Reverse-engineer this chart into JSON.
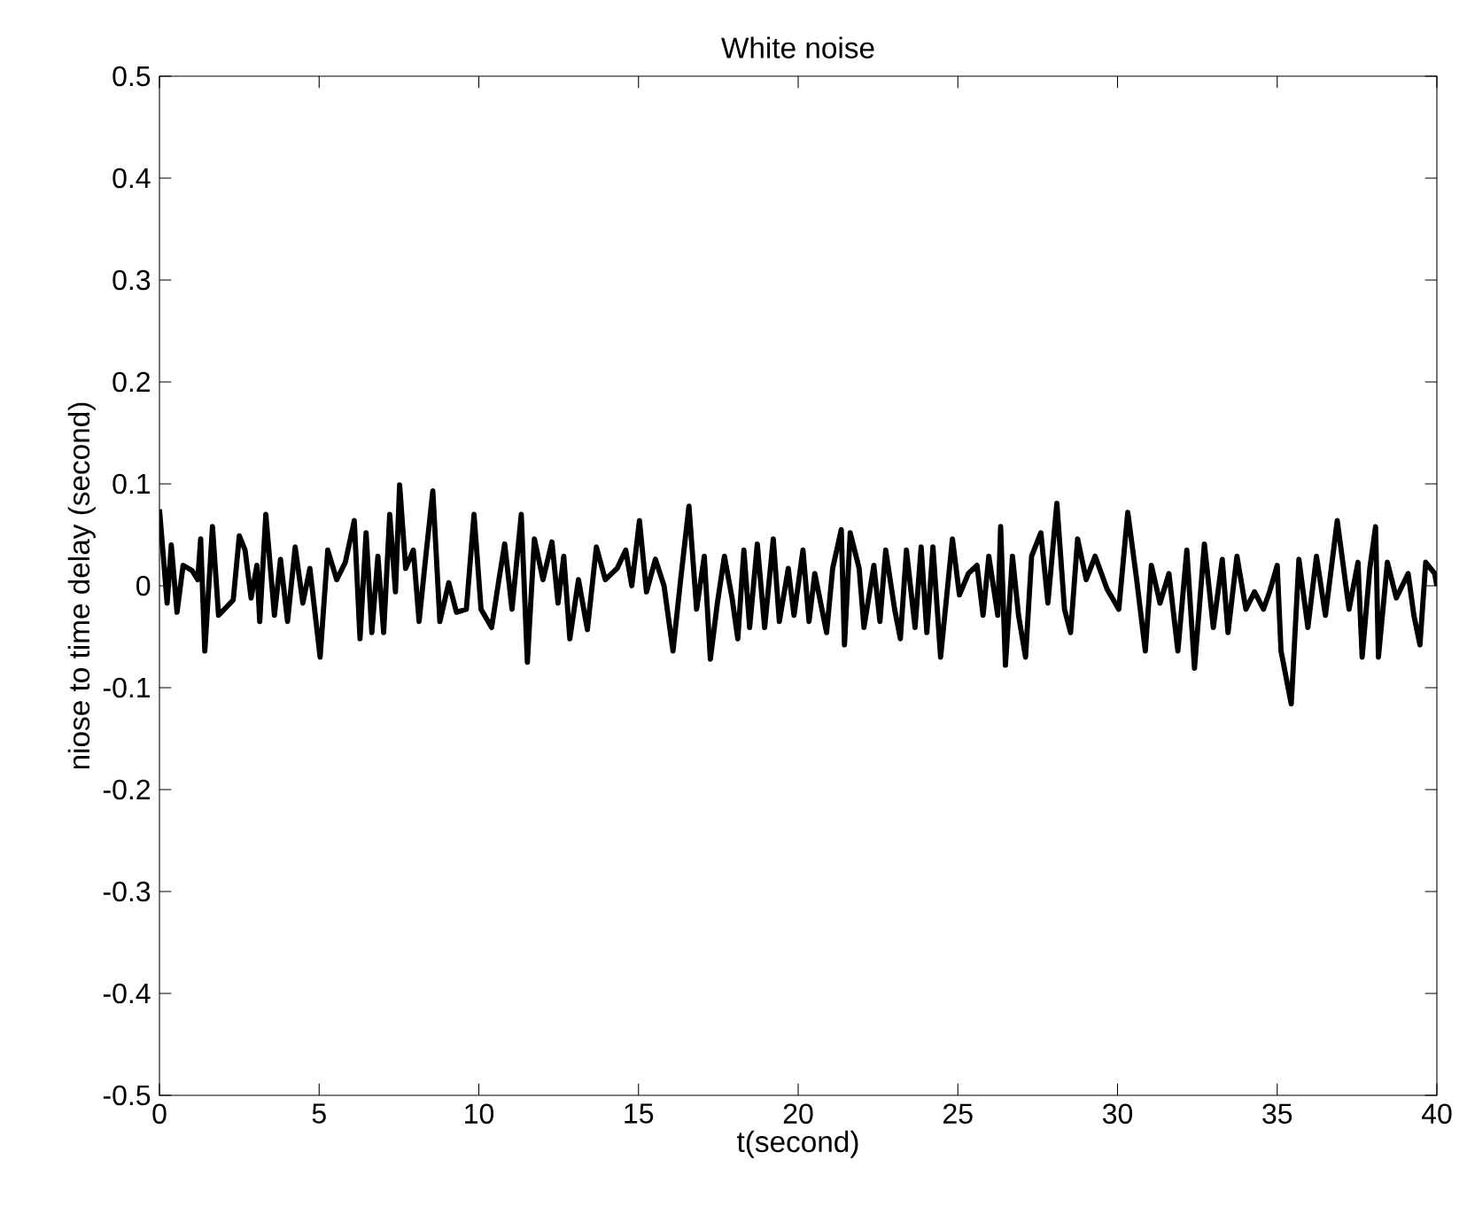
{
  "chart_data": {
    "type": "line",
    "title": "White noise",
    "xlabel": "t(second)",
    "ylabel": "niose to time delay (second)",
    "color": "#000000",
    "grid": false,
    "marker": "none",
    "line_style": "solid",
    "xlim": [
      0,
      40
    ],
    "ylim": [
      -0.5,
      0.5
    ],
    "xticks": [
      0,
      5,
      10,
      15,
      20,
      25,
      30,
      35,
      40
    ],
    "yticks": [
      -0.5,
      -0.4,
      -0.3,
      -0.2,
      -0.1,
      0,
      0.1,
      0.2,
      0.3,
      0.4,
      0.5
    ],
    "x": [
      0,
      0.24,
      0.37,
      0.55,
      0.74,
      1.02,
      1.2,
      1.29,
      1.42,
      1.66,
      1.85,
      2.31,
      2.5,
      2.68,
      2.87,
      3.05,
      3.14,
      3.33,
      3.6,
      3.79,
      4.01,
      4.25,
      4.49,
      4.71,
      5.03,
      5.27,
      5.55,
      5.82,
      6.1,
      6.28,
      6.47,
      6.65,
      6.84,
      7.02,
      7.21,
      7.39,
      7.52,
      7.71,
      7.95,
      8.13,
      8.32,
      8.56,
      8.78,
      9.06,
      9.3,
      9.61,
      9.85,
      10.07,
      10.4,
      10.63,
      10.81,
      11.04,
      11.33,
      11.52,
      11.74,
      12.01,
      12.29,
      12.48,
      12.66,
      12.85,
      13.12,
      13.4,
      13.68,
      13.96,
      14.33,
      14.6,
      14.79,
      15.03,
      15.25,
      15.53,
      15.8,
      16.08,
      16.32,
      16.58,
      16.82,
      17.06,
      17.25,
      17.47,
      17.69,
      17.93,
      18.11,
      18.3,
      18.48,
      18.72,
      18.95,
      19.22,
      19.41,
      19.69,
      19.87,
      20.15,
      20.34,
      20.52,
      20.89,
      21.08,
      21.35,
      21.45,
      21.63,
      21.91,
      22.06,
      22.37,
      22.56,
      22.74,
      23.02,
      23.2,
      23.39,
      23.66,
      23.85,
      24.03,
      24.22,
      24.46,
      24.83,
      25.05,
      25.33,
      25.6,
      25.79,
      25.97,
      26.25,
      26.34,
      26.49,
      26.71,
      26.9,
      27.12,
      27.31,
      27.6,
      27.82,
      28.1,
      28.34,
      28.53,
      28.75,
      29.02,
      29.3,
      29.67,
      30.04,
      30.32,
      30.6,
      30.87,
      31.06,
      31.33,
      31.61,
      31.89,
      32.17,
      32.41,
      32.72,
      33,
      33.28,
      33.46,
      33.74,
      34.02,
      34.29,
      34.57,
      34.76,
      35,
      35.12,
      35.44,
      35.68,
      35.96,
      36.23,
      36.51,
      36.88,
      37.25,
      37.53,
      37.66,
      37.9,
      38.08,
      38.17,
      38.45,
      38.73,
      39.1,
      39.28,
      39.47,
      39.65,
      39.93,
      40
    ],
    "values": [
      0.075,
      -0.017,
      0.04,
      -0.026,
      0.02,
      0.015,
      0.006,
      0.046,
      -0.064,
      0.058,
      -0.029,
      -0.014,
      0.049,
      0.035,
      -0.012,
      0.02,
      -0.035,
      0.07,
      -0.029,
      0.026,
      -0.035,
      0.038,
      -0.017,
      0.017,
      -0.07,
      0.035,
      0.006,
      0.023,
      0.064,
      -0.052,
      0.052,
      -0.046,
      0.029,
      -0.046,
      0.07,
      -0.006,
      0.099,
      0.017,
      0.035,
      -0.035,
      0.023,
      0.093,
      -0.035,
      0.003,
      -0.026,
      -0.023,
      0.07,
      -0.023,
      -0.041,
      0.006,
      0.041,
      -0.023,
      0.07,
      -0.075,
      0.046,
      0.006,
      0.043,
      -0.017,
      0.029,
      -0.052,
      0.006,
      -0.043,
      0.038,
      0.006,
      0.017,
      0.035,
      0,
      0.064,
      -0.006,
      0.026,
      0,
      -0.064,
      0.006,
      0.078,
      -0.023,
      0.029,
      -0.072,
      -0.017,
      0.029,
      -0.012,
      -0.052,
      0.035,
      -0.041,
      0.041,
      -0.041,
      0.046,
      -0.035,
      0.017,
      -0.029,
      0.035,
      -0.035,
      0.012,
      -0.046,
      0.017,
      0.055,
      -0.058,
      0.052,
      0.017,
      -0.041,
      0.02,
      -0.035,
      0.035,
      -0.023,
      -0.052,
      0.035,
      -0.041,
      0.038,
      -0.046,
      0.038,
      -0.07,
      0.046,
      -0.009,
      0.012,
      0.02,
      -0.029,
      0.029,
      -0.029,
      0.058,
      -0.078,
      0.029,
      -0.029,
      -0.07,
      0.029,
      0.052,
      -0.017,
      0.081,
      -0.023,
      -0.046,
      0.046,
      0.006,
      0.029,
      -0.003,
      -0.023,
      0.072,
      0.006,
      -0.064,
      0.02,
      -0.017,
      0.012,
      -0.064,
      0.035,
      -0.081,
      0.041,
      -0.041,
      0.026,
      -0.046,
      0.029,
      -0.023,
      -0.006,
      -0.023,
      -0.006,
      0.02,
      -0.064,
      -0.116,
      0.026,
      -0.041,
      0.029,
      -0.029,
      0.064,
      -0.023,
      0.023,
      -0.07,
      0.017,
      0.058,
      -0.07,
      0.023,
      -0.012,
      0.012,
      -0.029,
      -0.058,
      0.023,
      0.012,
      0
    ]
  }
}
